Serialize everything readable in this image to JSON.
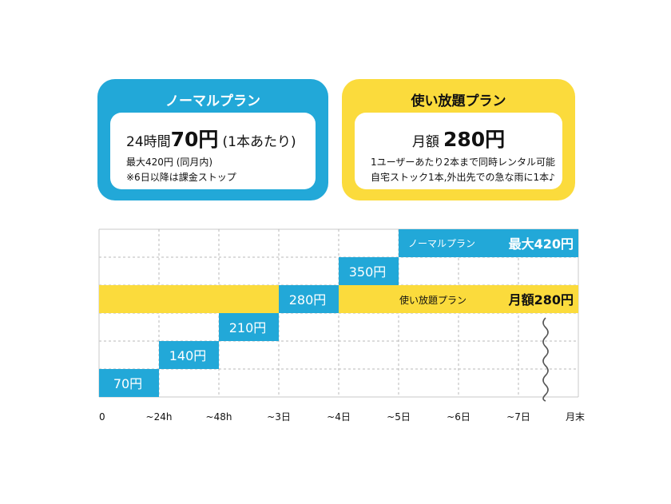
{
  "plans": {
    "normal": {
      "title": "ノーマルプラン",
      "price_prefix": "24時間",
      "price_main": "70円",
      "price_suffix": "(1本あたり)",
      "note1": "最大420円 (同月内)",
      "note2": "※6日以降は課金ストップ"
    },
    "unlimited": {
      "title": "使い放題プラン",
      "price_prefix": "月額",
      "price_main": "280円",
      "note1": "1ユーザーあたり2本まで同時レンタル可能",
      "note2": "自宅ストック1本,外出先での急な雨に1本♪"
    }
  },
  "colors": {
    "normal": "#22a8d8",
    "unlimited": "#fbdb3c",
    "grid": "#b9b9b9",
    "border": "#c8c8c8"
  },
  "chart_data": {
    "type": "bar",
    "categories": [
      "0",
      "~24h",
      "~48h",
      "~3日",
      "~4日",
      "~5日",
      "~6日",
      "~7日",
      "月末"
    ],
    "ylim": [
      0,
      6
    ],
    "series": [
      {
        "name": "ノーマルプラン",
        "color": "#22a8d8",
        "steps": [
          {
            "from": 0,
            "to": 1,
            "level": 1,
            "label": "70円"
          },
          {
            "from": 1,
            "to": 2,
            "level": 2,
            "label": "140円"
          },
          {
            "from": 2,
            "to": 3,
            "level": 3,
            "label": "210円"
          },
          {
            "from": 3,
            "to": 4,
            "level": 4,
            "label": "280円"
          },
          {
            "from": 4,
            "to": 5,
            "level": 5,
            "label": "350円"
          },
          {
            "from": 5,
            "to": 8,
            "level": 6,
            "label": ""
          }
        ],
        "line_label": "ノーマルプラン",
        "line_value": "最大420円"
      },
      {
        "name": "使い放題プラン",
        "color": "#fbdb3c",
        "flat_level": 4,
        "line_label": "使い放題プラン",
        "line_value": "月額280円"
      }
    ]
  }
}
